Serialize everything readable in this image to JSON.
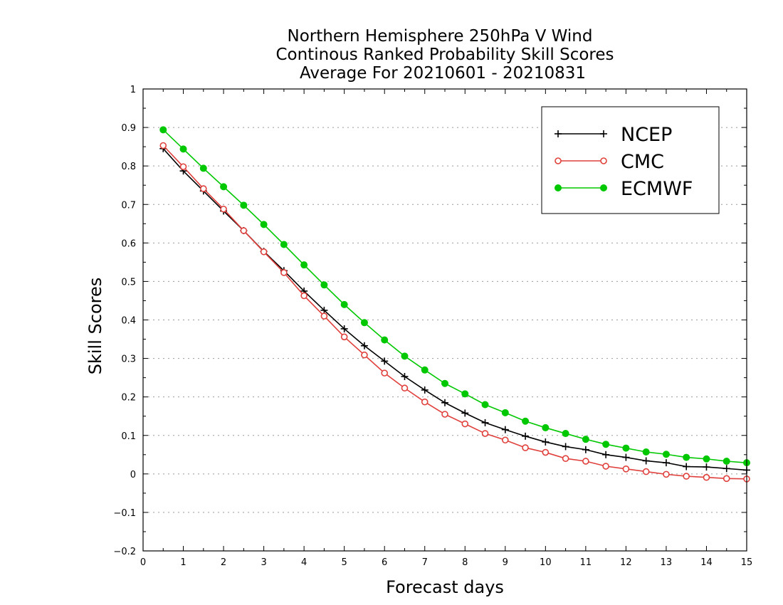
{
  "chart_data": {
    "type": "line",
    "title_lines": [
      "Northern Hemisphere 250hPa V Wind",
      "Continous Ranked Probability Skill Scores",
      "Average For 20210601 - 20210831"
    ],
    "xlabel": "Forecast days",
    "ylabel": "Skill Scores",
    "xlim": [
      0,
      15
    ],
    "ylim": [
      -0.2,
      1
    ],
    "xticks": [
      "0",
      "1",
      "2",
      "3",
      "4",
      "5",
      "6",
      "7",
      "8",
      "9",
      "10",
      "11",
      "12",
      "13",
      "14",
      "15"
    ],
    "yticks": [
      "−0.2",
      "−0.1",
      "0",
      "0.1",
      "0.2",
      "0.3",
      "0.4",
      "0.5",
      "0.6",
      "0.7",
      "0.8",
      "0.9",
      "1"
    ],
    "grid": "horizontal dotted",
    "legend_position": "top-right",
    "x": [
      0.5,
      1,
      1.5,
      2,
      2.5,
      3,
      3.5,
      4,
      4.5,
      5,
      5.5,
      6,
      6.5,
      7,
      7.5,
      8,
      8.5,
      9,
      9.5,
      10,
      10.5,
      11,
      11.5,
      12,
      12.5,
      13,
      13.5,
      14,
      14.5,
      15
    ],
    "series": [
      {
        "name": "NCEP",
        "color": "#000000",
        "marker": "plus",
        "values": [
          0.845,
          0.787,
          0.735,
          0.683,
          0.632,
          0.578,
          0.528,
          0.475,
          0.425,
          0.377,
          0.333,
          0.293,
          0.253,
          0.218,
          0.185,
          0.158,
          0.133,
          0.115,
          0.098,
          0.083,
          0.071,
          0.063,
          0.05,
          0.043,
          0.034,
          0.029,
          0.019,
          0.018,
          0.014,
          0.01
        ]
      },
      {
        "name": "CMC",
        "color": "#e0403c",
        "marker": "open-circle",
        "values": [
          0.853,
          0.798,
          0.741,
          0.688,
          0.632,
          0.577,
          0.523,
          0.463,
          0.41,
          0.356,
          0.309,
          0.262,
          0.223,
          0.187,
          0.155,
          0.13,
          0.105,
          0.088,
          0.068,
          0.056,
          0.04,
          0.033,
          0.02,
          0.013,
          0.006,
          -0.001,
          -0.006,
          -0.009,
          -0.012,
          -0.013
        ]
      },
      {
        "name": "ECMWF",
        "color": "#00c800",
        "marker": "filled-circle",
        "values": [
          0.894,
          0.844,
          0.794,
          0.746,
          0.698,
          0.648,
          0.596,
          0.543,
          0.491,
          0.44,
          0.393,
          0.348,
          0.306,
          0.27,
          0.235,
          0.208,
          0.18,
          0.159,
          0.137,
          0.12,
          0.105,
          0.09,
          0.077,
          0.067,
          0.057,
          0.051,
          0.043,
          0.039,
          0.033,
          0.029
        ]
      }
    ]
  }
}
